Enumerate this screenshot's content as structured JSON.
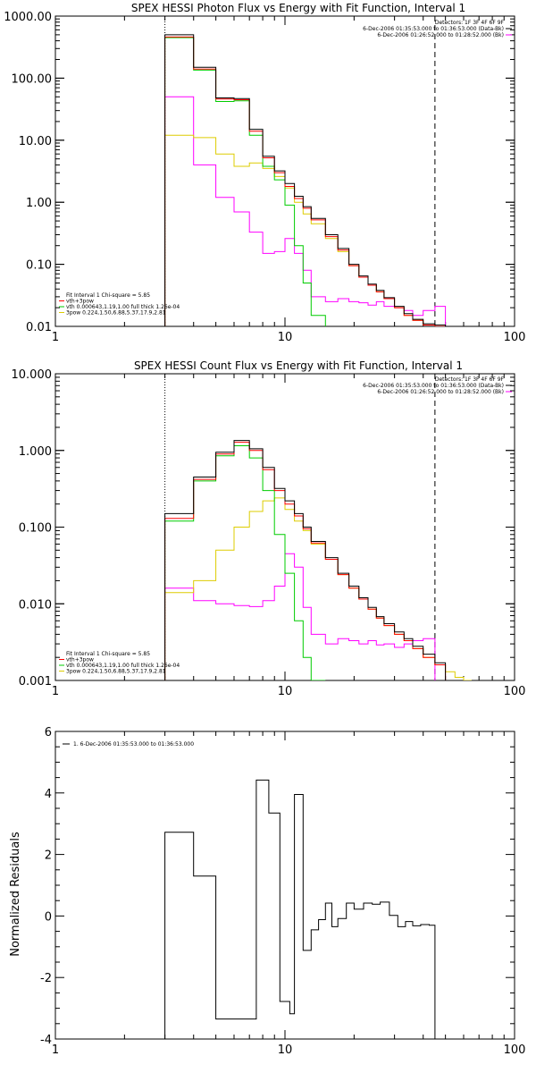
{
  "chart_data": [
    {
      "type": "line",
      "title": "SPEX HESSI Photon Flux vs Energy with Fit Function, Interval 1",
      "xscale": "log",
      "yscale": "log",
      "xlim": [
        1,
        100
      ],
      "ylim": [
        0.01,
        1000
      ],
      "x_tick_labels": [
        "1",
        "10",
        "100"
      ],
      "y_tick_labels": [
        "1000.00",
        "100.00",
        "10.00",
        "1.00",
        "0.10",
        "0.01"
      ],
      "vlines": [
        {
          "x": 3,
          "style": "dotted"
        },
        {
          "x": 45,
          "style": "dashed"
        }
      ],
      "legend_top_right": [
        {
          "text": "Detectors: 1F 3F 4F 6F 9F",
          "color": ""
        },
        {
          "text": "6-Dec-2006 01:35:53.000 to 01:36:53.000 (Data-Bk)",
          "color": "#000000"
        },
        {
          "text": "6-Dec-2006 01:26:52.000 to 01:28:52.000 (Bk)",
          "color": "#ff00ff"
        }
      ],
      "legend_bottom_left": [
        {
          "text": "Fit Interval 1   Chi-square = 5.85",
          "color": ""
        },
        {
          "text": "vth+3pow",
          "color": "#ff0000"
        },
        {
          "text": "vth 0.000643,1.19,1.00   full thick 1.26e-04",
          "color": "#00cc00"
        },
        {
          "text": "3pow 0.224,1.50,6.88,5.37,17.9,2.81",
          "color": "#ddcc00"
        }
      ],
      "bin_edges": [
        3,
        4,
        5,
        6,
        7,
        8,
        9,
        10,
        11,
        12,
        13,
        15,
        17,
        19,
        21,
        23,
        25,
        27,
        30,
        33,
        36,
        40,
        45,
        50
      ],
      "series": [
        {
          "color": "#000000",
          "values": [
            500,
            150,
            48,
            47,
            15,
            5.5,
            3.2,
            2.0,
            1.25,
            0.85,
            0.55,
            0.3,
            0.18,
            0.1,
            0.065,
            0.048,
            0.038,
            0.029,
            0.021,
            0.016,
            0.013,
            0.011,
            0.0105,
            null
          ]
        },
        {
          "color": "#ff0000",
          "values": [
            460,
            140,
            46,
            45,
            14,
            5.2,
            3.0,
            1.8,
            1.15,
            0.8,
            0.52,
            0.28,
            0.17,
            0.095,
            0.062,
            0.046,
            0.036,
            0.028,
            0.02,
            0.015,
            0.0125,
            0.0105,
            0.01,
            null
          ]
        },
        {
          "color": "#00cc00",
          "values": [
            450,
            135,
            42,
            43,
            12,
            3.8,
            2.3,
            0.9,
            0.2,
            0.05,
            0.015,
            null,
            null,
            null,
            null,
            null,
            null,
            null,
            null,
            null,
            null,
            null,
            null,
            null
          ]
        },
        {
          "color": "#ddcc00",
          "values": [
            12,
            11,
            6,
            3.8,
            4.3,
            3.5,
            2.6,
            1.7,
            1.0,
            0.65,
            0.45,
            0.26,
            0.16,
            0.095,
            0.062,
            0.046,
            0.036,
            0.028,
            0.02,
            0.015,
            0.0125,
            0.0105,
            0.01,
            0.0085
          ]
        },
        {
          "color": "#ff00ff",
          "values": [
            50,
            4.0,
            1.2,
            0.7,
            0.33,
            0.15,
            0.16,
            0.26,
            0.15,
            0.08,
            0.03,
            0.025,
            0.028,
            0.025,
            0.024,
            0.022,
            0.025,
            0.021,
            0.02,
            0.018,
            0.015,
            0.018,
            0.021,
            null
          ]
        }
      ]
    },
    {
      "type": "line",
      "title": "SPEX HESSI Count Flux vs Energy with Fit Function, Interval 1",
      "xscale": "log",
      "yscale": "log",
      "xlim": [
        1,
        100
      ],
      "ylim": [
        0.001,
        10
      ],
      "x_tick_labels": [
        "1",
        "10",
        "100"
      ],
      "y_tick_labels": [
        "10.000",
        "1.000",
        "0.100",
        "0.010",
        "0.001"
      ],
      "vlines": [
        {
          "x": 3,
          "style": "dotted"
        },
        {
          "x": 45,
          "style": "dashed"
        }
      ],
      "legend_top_right": [
        {
          "text": "Detectors: 1F 3F 4F 6F 9F",
          "color": ""
        },
        {
          "text": "6-Dec-2006 01:35:53.000 to 01:36:53.000 (Data-Bk)",
          "color": "#000000"
        },
        {
          "text": "6-Dec-2006 01:26:52.000 to 01:28:52.000 (Bk)",
          "color": "#ff00ff"
        }
      ],
      "legend_bottom_left": [
        {
          "text": "Fit Interval 1   Chi-square = 5.85",
          "color": ""
        },
        {
          "text": "vth+3pow",
          "color": "#ff0000"
        },
        {
          "text": "vth 0.000643,1.19,1.00   full thick 1.26e-04",
          "color": "#00cc00"
        },
        {
          "text": "3pow 0.224,1.50,6.88,5.37,17.9,2.81",
          "color": "#ddcc00"
        }
      ],
      "bin_edges": [
        3,
        4,
        5,
        6,
        7,
        8,
        9,
        10,
        11,
        12,
        13,
        15,
        17,
        19,
        21,
        23,
        25,
        27,
        30,
        33,
        36,
        40,
        45,
        50,
        55,
        60,
        65
      ],
      "series": [
        {
          "color": "#000000",
          "values": [
            0.15,
            0.45,
            0.95,
            1.35,
            1.05,
            0.6,
            0.32,
            0.22,
            0.15,
            0.1,
            0.065,
            0.04,
            0.025,
            0.017,
            0.012,
            0.009,
            0.0068,
            0.0055,
            0.0043,
            0.0035,
            0.0028,
            0.0022,
            0.0017,
            null,
            null,
            null
          ]
        },
        {
          "color": "#ff0000",
          "values": [
            0.13,
            0.42,
            0.9,
            1.28,
            1.0,
            0.56,
            0.3,
            0.2,
            0.14,
            0.095,
            0.062,
            0.038,
            0.024,
            0.016,
            0.0115,
            0.0085,
            0.0065,
            0.0052,
            0.004,
            0.0033,
            0.0026,
            0.002,
            0.0016,
            null,
            null,
            null
          ]
        },
        {
          "color": "#00cc00",
          "values": [
            0.12,
            0.4,
            0.85,
            1.15,
            0.8,
            0.3,
            0.08,
            0.025,
            0.006,
            0.002,
            0.001,
            null,
            null,
            null,
            null,
            null,
            null,
            null,
            null,
            null,
            null,
            null,
            null,
            null,
            null,
            null
          ]
        },
        {
          "color": "#ddcc00",
          "values": [
            0.014,
            0.02,
            0.05,
            0.1,
            0.16,
            0.22,
            0.24,
            0.17,
            0.12,
            0.09,
            0.06,
            0.038,
            0.024,
            0.016,
            0.0115,
            0.0085,
            0.0065,
            0.0052,
            0.004,
            0.0033,
            0.0026,
            0.002,
            0.0016,
            0.0013,
            0.0011,
            0.001
          ]
        },
        {
          "color": "#ff00ff",
          "values": [
            0.016,
            0.011,
            0.01,
            0.0095,
            0.0092,
            0.011,
            0.017,
            0.045,
            0.03,
            0.009,
            0.004,
            0.003,
            0.0035,
            0.0033,
            0.003,
            0.0033,
            0.0029,
            0.003,
            0.0027,
            0.003,
            0.0033,
            0.0035,
            null,
            null,
            null,
            null
          ]
        }
      ]
    },
    {
      "type": "line",
      "title": "",
      "xscale": "log",
      "yscale": "linear",
      "xlim": [
        1,
        100
      ],
      "ylim": [
        -4,
        6
      ],
      "ylabel": "Normalized Residuals",
      "x_tick_labels": [
        "1",
        "10",
        "100"
      ],
      "y_tick_labels": [
        "6",
        "4",
        "2",
        "0",
        "-2",
        "-4"
      ],
      "legend_top_left": [
        {
          "text": "1.  6-Dec-2006 01:35:53.000 to 01:36:53.000",
          "color": "#000000"
        }
      ],
      "bin_edges": [
        3,
        4,
        5,
        7,
        7.5,
        8.5,
        9.5,
        10.5,
        11,
        12,
        13,
        14,
        15,
        16,
        17,
        18.5,
        20,
        22,
        24,
        26,
        28.5,
        31,
        33.5,
        36,
        39,
        42.5,
        45
      ],
      "series": [
        {
          "color": "#000000",
          "values": [
            2.72,
            1.3,
            -3.35,
            -3.35,
            4.42,
            3.35,
            -2.78,
            -3.18,
            3.95,
            -1.12,
            -0.45,
            -0.12,
            0.42,
            -0.35,
            -0.08,
            0.42,
            0.22,
            0.42,
            0.38,
            0.45,
            0.02,
            -0.35,
            -0.18,
            -0.32,
            -0.28,
            -0.3
          ]
        }
      ]
    }
  ],
  "icons": []
}
